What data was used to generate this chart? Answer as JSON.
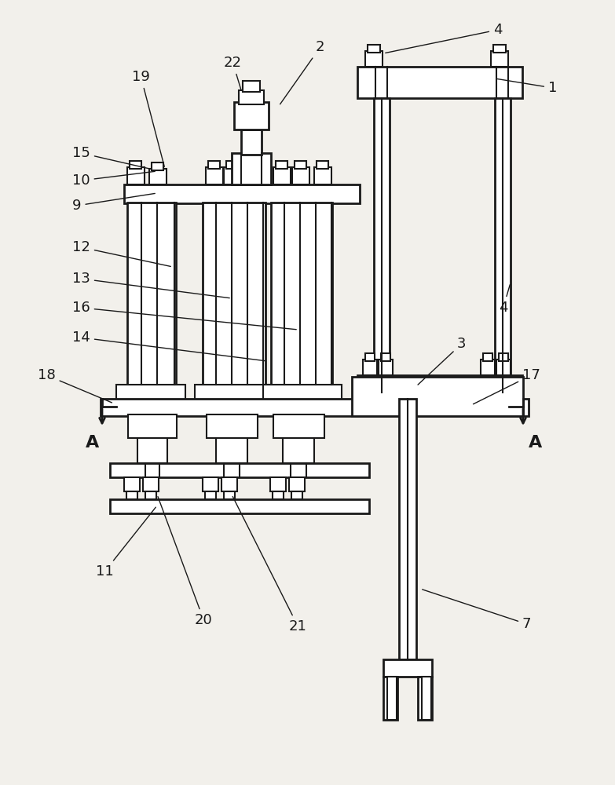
{
  "bg_color": "#f2f0eb",
  "line_color": "#1a1a1a",
  "lw": 1.5,
  "lw2": 2.0
}
